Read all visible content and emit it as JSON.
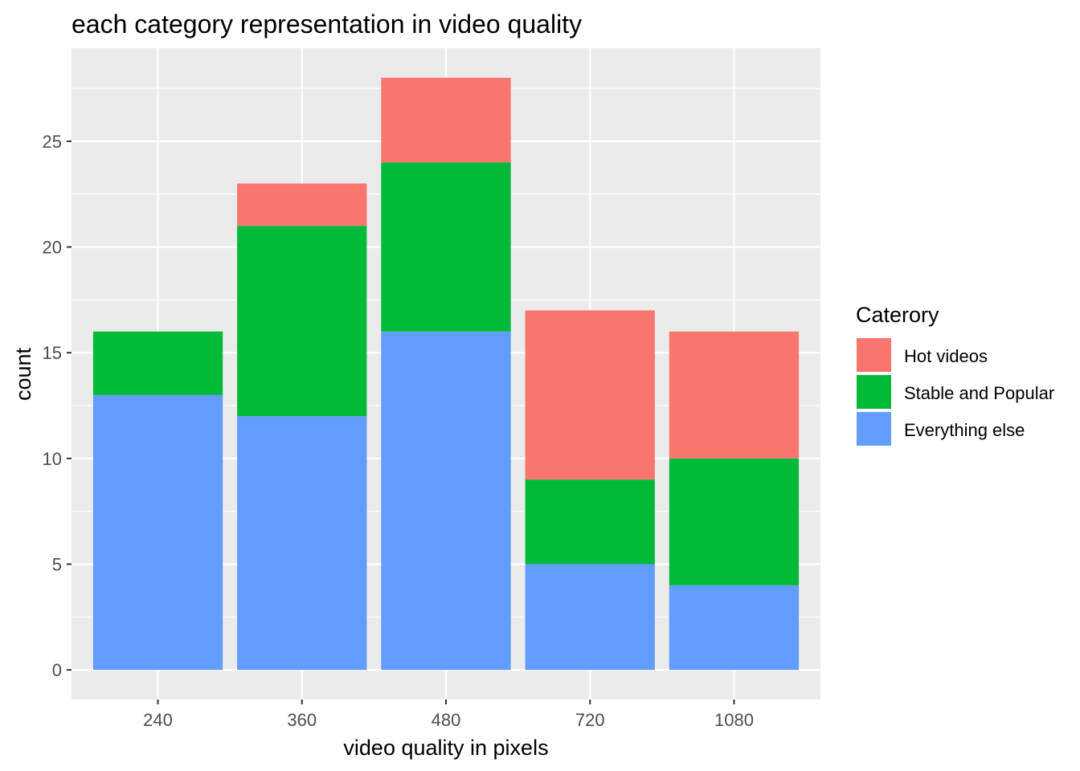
{
  "chart_data": {
    "type": "bar",
    "stacked": true,
    "title": "each category representation in video quality",
    "xlabel": "video quality in pixels",
    "ylabel": "count",
    "categories": [
      "240",
      "360",
      "480",
      "720",
      "1080"
    ],
    "series": [
      {
        "name": "Everything else",
        "color": "#619CFF",
        "values": [
          13,
          12,
          16,
          5,
          4
        ]
      },
      {
        "name": "Stable and Popular",
        "color": "#00BA38",
        "values": [
          3,
          9,
          8,
          4,
          6
        ]
      },
      {
        "name": "Hot videos",
        "color": "#F8766D",
        "values": [
          0,
          2,
          4,
          8,
          6
        ]
      }
    ],
    "ylim": [
      -1.4,
      29.4
    ],
    "yticks": [
      0,
      5,
      10,
      15,
      20,
      25
    ],
    "grid": true,
    "panel_background": "#EBEBEB",
    "legend": {
      "title": "Caterory",
      "position": "right",
      "entries": [
        "Hot videos",
        "Stable and Popular",
        "Everything else"
      ]
    }
  }
}
